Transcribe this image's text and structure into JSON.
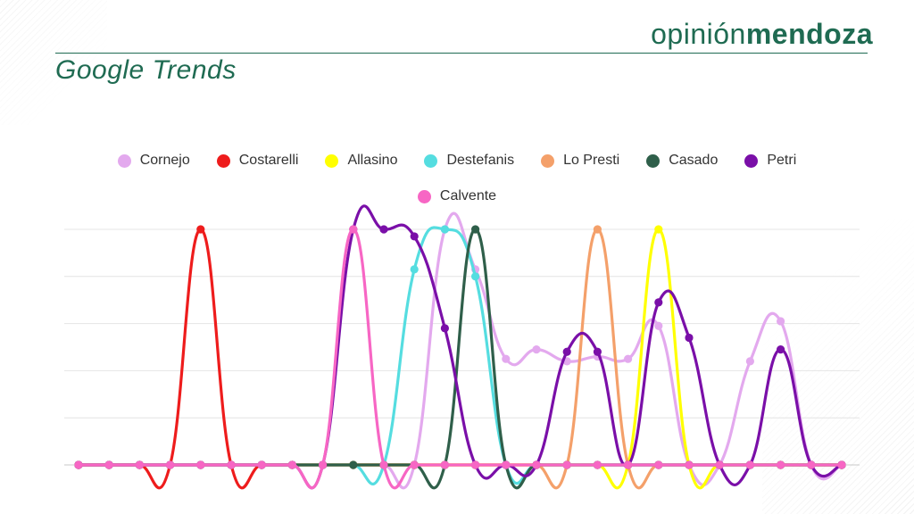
{
  "header": {
    "brand_light": "opinión",
    "brand_bold": "mendoza",
    "title": "Google Trends",
    "accent_color": "#1f6b52"
  },
  "chart_data": {
    "type": "line",
    "title": "Google Trends",
    "xlabel": "",
    "ylabel": "",
    "ylim": [
      0,
      100
    ],
    "grid": true,
    "legend_position": "top",
    "x": [
      0,
      1,
      2,
      3,
      4,
      5,
      6,
      7,
      8,
      9,
      10,
      11,
      12,
      13,
      14,
      15,
      16,
      17,
      18,
      19,
      20,
      21,
      22,
      23,
      24,
      25
    ],
    "series": [
      {
        "name": "Cornejo",
        "color": "#e3a9ee",
        "values": [
          0,
          0,
          0,
          0,
          0,
          0,
          0,
          0,
          0,
          0,
          0,
          0,
          100,
          83,
          45,
          49,
          44,
          46,
          45,
          59,
          0,
          0,
          44,
          61,
          0,
          0
        ]
      },
      {
        "name": "Costarelli",
        "color": "#ee1c1c",
        "values": [
          0,
          0,
          0,
          0,
          100,
          0,
          0,
          0,
          0,
          0,
          0,
          0,
          0,
          0,
          0,
          0,
          0,
          0,
          0,
          0,
          0,
          0,
          0,
          0,
          0,
          0
        ]
      },
      {
        "name": "Allasino",
        "color": "#ffff00",
        "values": [
          0,
          0,
          0,
          0,
          0,
          0,
          0,
          0,
          0,
          0,
          0,
          0,
          0,
          0,
          0,
          0,
          0,
          0,
          0,
          100,
          0,
          0,
          0,
          0,
          0,
          0
        ]
      },
      {
        "name": "Destefanis",
        "color": "#55dde0",
        "values": [
          0,
          0,
          0,
          0,
          0,
          0,
          0,
          0,
          0,
          0,
          0,
          83,
          100,
          80,
          0,
          0,
          0,
          0,
          0,
          0,
          0,
          0,
          0,
          0,
          0,
          0
        ]
      },
      {
        "name": "Lo Presti",
        "color": "#f4a06a",
        "values": [
          0,
          0,
          0,
          0,
          0,
          0,
          0,
          0,
          0,
          0,
          0,
          0,
          0,
          0,
          0,
          0,
          0,
          100,
          0,
          0,
          0,
          0,
          0,
          0,
          0,
          0
        ]
      },
      {
        "name": "Casado",
        "color": "#2f5f4a",
        "values": [
          0,
          0,
          0,
          0,
          0,
          0,
          0,
          0,
          0,
          0,
          0,
          0,
          0,
          100,
          0,
          0,
          0,
          0,
          0,
          0,
          0,
          0,
          0,
          0,
          0,
          0
        ]
      },
      {
        "name": "Petri",
        "color": "#7a0fa8",
        "values": [
          0,
          0,
          0,
          0,
          0,
          0,
          0,
          0,
          0,
          100,
          100,
          97,
          58,
          0,
          0,
          0,
          48,
          48,
          0,
          69,
          54,
          0,
          0,
          49,
          0,
          0
        ]
      },
      {
        "name": "Calvente",
        "color": "#f766c4",
        "values": [
          0,
          0,
          0,
          0,
          0,
          0,
          0,
          0,
          0,
          100,
          0,
          0,
          0,
          0,
          0,
          0,
          0,
          0,
          0,
          0,
          0,
          0,
          0,
          0,
          0,
          0
        ]
      }
    ]
  }
}
